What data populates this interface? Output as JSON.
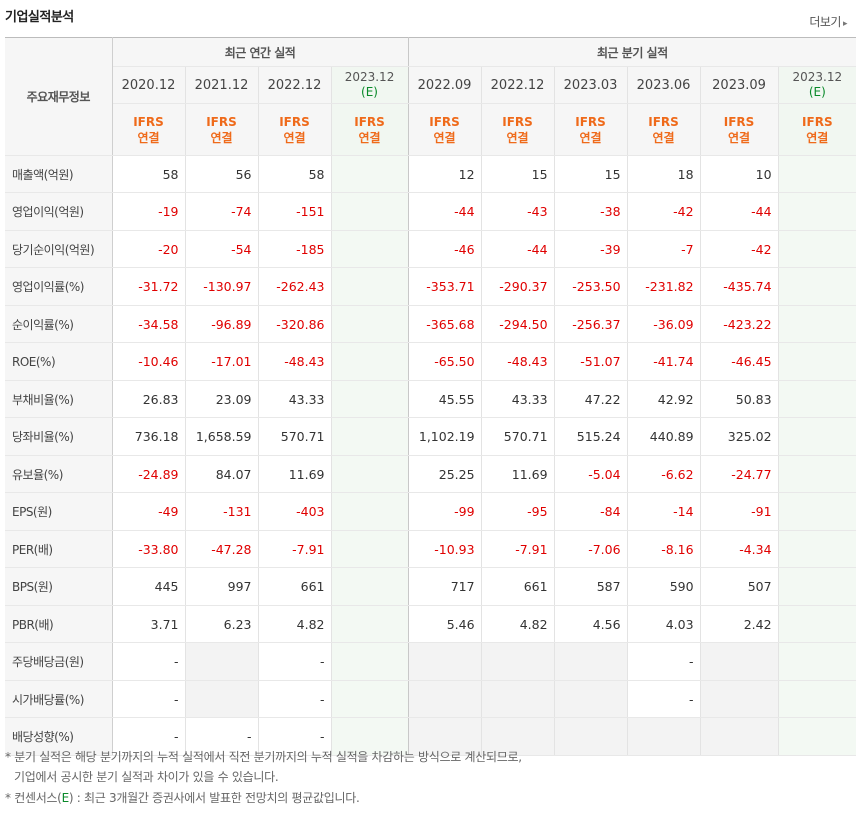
{
  "title": "기업실적분석",
  "more_label": "더보기",
  "header": {
    "row_label": "주요재무정보",
    "annual_label": "최근 연간 실적",
    "quarter_label": "최근 분기 실적",
    "annual_periods": [
      "2020.12",
      "2021.12",
      "2022.12",
      "2023.12"
    ],
    "quarter_periods": [
      "2022.09",
      "2022.12",
      "2023.03",
      "2023.06",
      "2023.09",
      "2023.12"
    ],
    "estimate_mark": "(E)",
    "ifrs_top": "IFRS",
    "ifrs_bottom": "연결"
  },
  "rows": [
    {
      "label": "매출액(억원)",
      "annual": [
        "58",
        "56",
        "58",
        ""
      ],
      "quarter": [
        "12",
        "15",
        "15",
        "18",
        "10",
        ""
      ]
    },
    {
      "label": "영업이익(억원)",
      "annual": [
        "-19",
        "-74",
        "-151",
        ""
      ],
      "quarter": [
        "-44",
        "-43",
        "-38",
        "-42",
        "-44",
        ""
      ]
    },
    {
      "label": "당기순이익(억원)",
      "annual": [
        "-20",
        "-54",
        "-185",
        ""
      ],
      "quarter": [
        "-46",
        "-44",
        "-39",
        "-7",
        "-42",
        ""
      ]
    },
    {
      "label": "영업이익률(%)",
      "annual": [
        "-31.72",
        "-130.97",
        "-262.43",
        ""
      ],
      "quarter": [
        "-353.71",
        "-290.37",
        "-253.50",
        "-231.82",
        "-435.74",
        ""
      ]
    },
    {
      "label": "순이익률(%)",
      "annual": [
        "-34.58",
        "-96.89",
        "-320.86",
        ""
      ],
      "quarter": [
        "-365.68",
        "-294.50",
        "-256.37",
        "-36.09",
        "-423.22",
        ""
      ]
    },
    {
      "label": "ROE(%)",
      "annual": [
        "-10.46",
        "-17.01",
        "-48.43",
        ""
      ],
      "quarter": [
        "-65.50",
        "-48.43",
        "-51.07",
        "-41.74",
        "-46.45",
        ""
      ]
    },
    {
      "label": "부채비율(%)",
      "annual": [
        "26.83",
        "23.09",
        "43.33",
        ""
      ],
      "quarter": [
        "45.55",
        "43.33",
        "47.22",
        "42.92",
        "50.83",
        ""
      ]
    },
    {
      "label": "당좌비율(%)",
      "annual": [
        "736.18",
        "1,658.59",
        "570.71",
        ""
      ],
      "quarter": [
        "1,102.19",
        "570.71",
        "515.24",
        "440.89",
        "325.02",
        ""
      ]
    },
    {
      "label": "유보율(%)",
      "annual": [
        "-24.89",
        "84.07",
        "11.69",
        ""
      ],
      "quarter": [
        "25.25",
        "11.69",
        "-5.04",
        "-6.62",
        "-24.77",
        ""
      ]
    },
    {
      "label": "EPS(원)",
      "annual": [
        "-49",
        "-131",
        "-403",
        ""
      ],
      "quarter": [
        "-99",
        "-95",
        "-84",
        "-14",
        "-91",
        ""
      ]
    },
    {
      "label": "PER(배)",
      "annual": [
        "-33.80",
        "-47.28",
        "-7.91",
        ""
      ],
      "quarter": [
        "-10.93",
        "-7.91",
        "-7.06",
        "-8.16",
        "-4.34",
        ""
      ]
    },
    {
      "label": "BPS(원)",
      "annual": [
        "445",
        "997",
        "661",
        ""
      ],
      "quarter": [
        "717",
        "661",
        "587",
        "590",
        "507",
        ""
      ]
    },
    {
      "label": "PBR(배)",
      "annual": [
        "3.71",
        "6.23",
        "4.82",
        ""
      ],
      "quarter": [
        "5.46",
        "4.82",
        "4.56",
        "4.03",
        "2.42",
        ""
      ]
    },
    {
      "label": "주당배당금(원)",
      "annual": [
        "-",
        "",
        "-",
        ""
      ],
      "quarter": [
        "",
        "",
        "",
        "-",
        "",
        ""
      ]
    },
    {
      "label": "시가배당률(%)",
      "annual": [
        "-",
        "",
        "-",
        ""
      ],
      "quarter": [
        "",
        "",
        "",
        "-",
        "",
        ""
      ]
    },
    {
      "label": "배당성향(%)",
      "annual": [
        "-",
        "-",
        "-",
        ""
      ],
      "quarter": [
        "",
        "",
        "",
        "",
        "",
        ""
      ]
    }
  ],
  "notes": {
    "note1_line1": "* 분기 실적은 해당 분기까지의 누적 실적에서 직전 분기까지의 누적 실적을 차감하는 방식으로 계산되므로,",
    "note1_line2": "기업에서 공시한 분기 실적과 차이가 있을 수 있습니다.",
    "note2_prefix": "* 컨센서스(",
    "note2_mark": "E",
    "note2_suffix": ") : 최근 3개월간 증권사에서 발표한 전망치의 평균값입니다."
  },
  "colors": {
    "negative": "#e00000",
    "ifrs": "#ef6a1a",
    "estimate": "#0a8a2a"
  }
}
